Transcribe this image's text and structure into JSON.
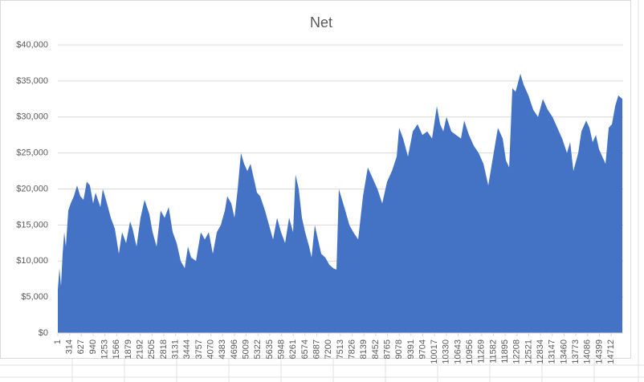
{
  "chart_data": {
    "type": "area",
    "title": "Net",
    "color": "#4472c4",
    "grid": true,
    "x": [
      1,
      44,
      86,
      129,
      172,
      215,
      279,
      343,
      428,
      513,
      599,
      684,
      770,
      855,
      940,
      1004,
      1068,
      1133,
      1197,
      1282,
      1410,
      1517,
      1624,
      1709,
      1816,
      1923,
      1987,
      2094,
      2200,
      2307,
      2435,
      2521,
      2627,
      2734,
      2841,
      2948,
      3055,
      3161,
      3268,
      3375,
      3460,
      3545,
      3674,
      3802,
      3908,
      4015,
      4122,
      4228,
      4335,
      4442,
      4506,
      4613,
      4698,
      4783,
      4869,
      4954,
      5040,
      5125,
      5210,
      5296,
      5381,
      5509,
      5616,
      5723,
      5830,
      5936,
      6043,
      6150,
      6256,
      6320,
      6406,
      6491,
      6577,
      6683,
      6747,
      6833,
      6918,
      7004,
      7110,
      7217,
      7324,
      7409,
      7473,
      7558,
      7644,
      7751,
      7858,
      7986,
      8114,
      8242,
      8370,
      8498,
      8626,
      8754,
      8883,
      9011,
      9075,
      9181,
      9310,
      9438,
      9566,
      9694,
      9822,
      9950,
      10078,
      10164,
      10249,
      10334,
      10463,
      10591,
      10719,
      10804,
      10932,
      11060,
      11188,
      11317,
      11445,
      11573,
      11701,
      11829,
      11914,
      12000,
      12085,
      12171,
      12299,
      12384,
      12512,
      12640,
      12768,
      12896,
      13025,
      13153,
      13281,
      13409,
      13537,
      13622,
      13708,
      13836,
      13921,
      14049,
      14135,
      14220,
      14306,
      14391,
      14476,
      14562,
      14647,
      14733,
      14818,
      14903,
      15010
    ],
    "values": [
      6000,
      9000,
      6500,
      11000,
      14000,
      12000,
      17000,
      18000,
      19000,
      20500,
      19000,
      18500,
      21000,
      20500,
      18000,
      19500,
      18500,
      17500,
      20000,
      18500,
      16000,
      14500,
      11000,
      14000,
      12500,
      15500,
      14500,
      12000,
      16000,
      18500,
      16500,
      14000,
      12000,
      17000,
      16000,
      17500,
      14000,
      12500,
      10000,
      9000,
      12000,
      10500,
      10000,
      14000,
      13000,
      14000,
      11000,
      14000,
      15000,
      17000,
      19000,
      18000,
      16000,
      20000,
      25000,
      23500,
      22500,
      23500,
      21500,
      19500,
      19000,
      17000,
      15000,
      13000,
      16000,
      14000,
      12500,
      16000,
      14000,
      22000,
      20000,
      16000,
      14000,
      12000,
      10500,
      15000,
      13000,
      11000,
      10500,
      9500,
      9000,
      8800,
      20000,
      18500,
      17000,
      15000,
      14000,
      13000,
      19000,
      23000,
      21500,
      20000,
      18000,
      21000,
      22500,
      24500,
      28500,
      27000,
      24500,
      28000,
      29000,
      27500,
      28000,
      27000,
      31500,
      29000,
      28000,
      30000,
      28000,
      27500,
      27000,
      29500,
      27500,
      26000,
      25000,
      23500,
      20500,
      24500,
      28500,
      27000,
      24000,
      23000,
      34000,
      33500,
      36000,
      34500,
      33000,
      31000,
      30000,
      32500,
      31000,
      30000,
      28500,
      27000,
      25000,
      26500,
      22500,
      25000,
      28000,
      29500,
      28500,
      26500,
      27500,
      25500,
      24500,
      23500,
      28500,
      29000,
      31500,
      33000,
      32500
    ],
    "xlim": [
      1,
      15030
    ],
    "xticks": [
      1,
      314,
      627,
      940,
      1253,
      1566,
      1879,
      2192,
      2505,
      2818,
      3131,
      3444,
      3757,
      4070,
      4383,
      4696,
      5009,
      5322,
      5635,
      5948,
      6261,
      6574,
      6887,
      7200,
      7513,
      7826,
      8139,
      8452,
      8765,
      9078,
      9391,
      9704,
      10017,
      10330,
      10643,
      10956,
      11269,
      11582,
      11895,
      12208,
      12521,
      12834,
      13147,
      13460,
      13773,
      14086,
      14399,
      14712
    ],
    "ylim": [
      0,
      40000
    ],
    "yticks": [
      {
        "value": 0,
        "label": "$0"
      },
      {
        "value": 5000,
        "label": "$5,000"
      },
      {
        "value": 10000,
        "label": "$10,000"
      },
      {
        "value": 15000,
        "label": "$15,000"
      },
      {
        "value": 20000,
        "label": "$20,000"
      },
      {
        "value": 25000,
        "label": "$25,000"
      },
      {
        "value": 30000,
        "label": "$30,000"
      },
      {
        "value": 35000,
        "label": "$35,000"
      },
      {
        "value": 40000,
        "label": "$40,000"
      }
    ]
  }
}
